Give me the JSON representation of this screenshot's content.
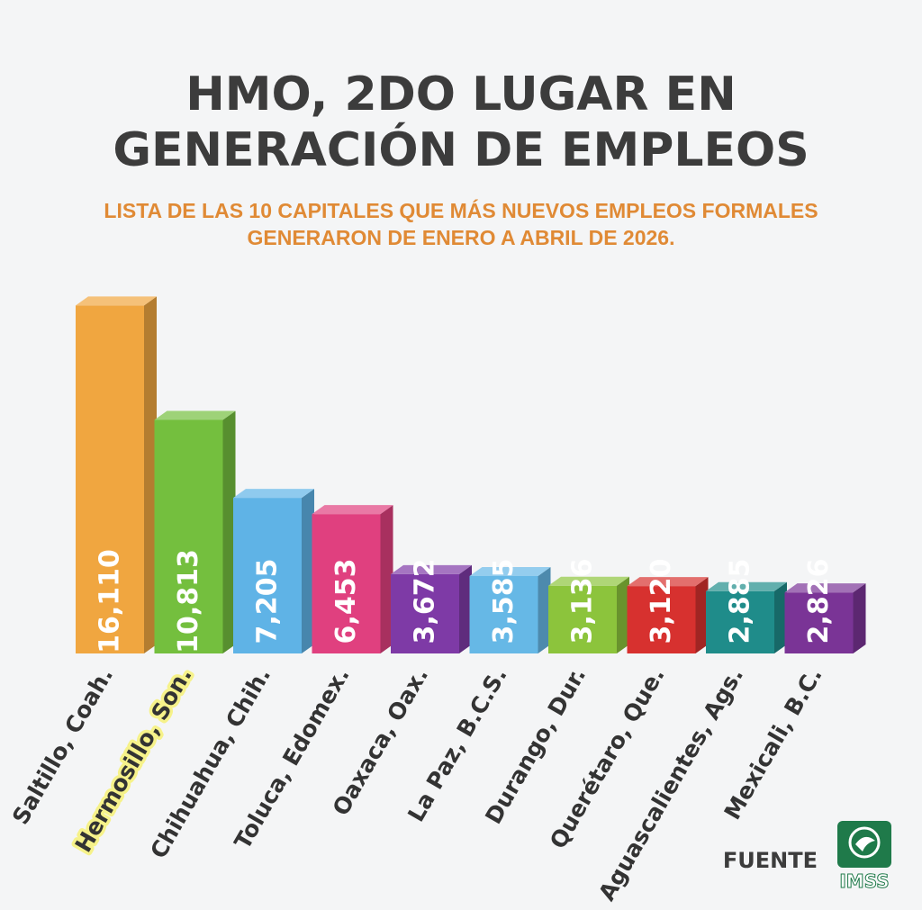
{
  "colors": {
    "background": "#f4f5f6",
    "title": "#3c3c3c",
    "subtitle": "#e08a35",
    "highlight_label": "#3f7a1f",
    "highlight_glow": "#f6f28a",
    "logo_green": "#1f7a4a"
  },
  "chart_data": {
    "type": "bar",
    "title_lines": [
      "HMO, 2DO LUGAR EN",
      "GENERACIÓN DE EMPLEOS"
    ],
    "subtitle_lines": [
      "LISTA DE LAS 10 CAPITALES QUE MÁS NUEVOS EMPLEOS FORMALES",
      "GENERARON DE ENERO A ABRIL DE 2026."
    ],
    "categories": [
      "Saltillo, Coah.",
      "Hermosillo, Son.",
      "Chihuahua, Chih.",
      "Toluca, Edomex.",
      "Oaxaca, Oax.",
      "La Paz, B.C.S.",
      "Durango, Dur.",
      "Querétaro, Que.",
      "Aguascalientes, Ags.",
      "Mexicali, B.C."
    ],
    "values": [
      16110,
      10813,
      7205,
      6453,
      3672,
      3585,
      3136,
      3120,
      2885,
      2826
    ],
    "value_labels": [
      "16,110",
      "10,813",
      "7,205",
      "6,453",
      "3,672",
      "3,585",
      "3,136",
      "3,120",
      "2,885",
      "2,826"
    ],
    "bar_colors": [
      "#f0a640",
      "#74bf3e",
      "#5fb3e6",
      "#e0407f",
      "#7e3aa6",
      "#66b8e6",
      "#8cc43c",
      "#d7312f",
      "#1f8c8a",
      "#7a3496"
    ],
    "highlight_index": 1,
    "ylim": [
      0,
      16500
    ],
    "grid": false,
    "legend": "none",
    "xlabel": "",
    "ylabel": ""
  },
  "footer": {
    "source_label": "FUENTE",
    "logo_text": "IMSS",
    "logo_icon": "imss-eagle-icon"
  }
}
